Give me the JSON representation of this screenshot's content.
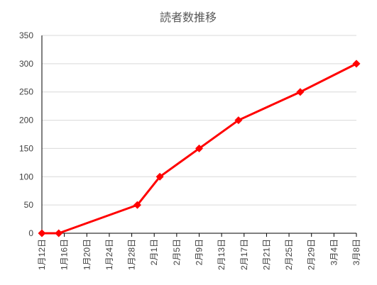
{
  "chart_data": {
    "type": "line",
    "title": "読者数推移",
    "xlabel": "",
    "ylabel": "",
    "ylim": [
      0,
      350
    ],
    "yticks": [
      0,
      50,
      100,
      150,
      200,
      250,
      300,
      350
    ],
    "xlim": [
      "2024-01-12",
      "2024-03-08"
    ],
    "x_tick_labels": [
      "1月12日",
      "1月16日",
      "1月20日",
      "1月24日",
      "1月28日",
      "2月1日",
      "2月5日",
      "2月9日",
      "2月13日",
      "2月17日",
      "2月21日",
      "2月25日",
      "2月29日",
      "3月4日",
      "3月8日"
    ],
    "grid": true,
    "legend": "none",
    "series": [
      {
        "color": "#ff0000",
        "marker": "diamond",
        "x": [
          "2024-01-12",
          "2024-01-15",
          "2024-01-29",
          "2024-02-02",
          "2024-02-09",
          "2024-02-16",
          "2024-02-27",
          "2024-03-08"
        ],
        "values": [
          0,
          0,
          50,
          100,
          150,
          200,
          250,
          300
        ]
      }
    ]
  }
}
